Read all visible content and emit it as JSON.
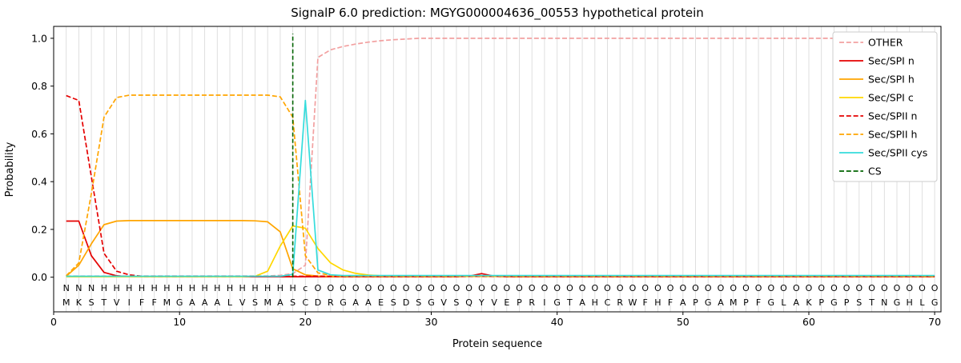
{
  "figure": {
    "title": "SignalP 6.0 prediction: MGYG000004636_00553 hypothetical protein",
    "xlabel": "Protein sequence",
    "ylabel": "Probability"
  },
  "chart_data": {
    "type": "line",
    "title": "SignalP 6.0 prediction: MGYG000004636_00553 hypothetical protein",
    "xlabel": "Protein sequence",
    "ylabel": "Probability",
    "xlim": [
      0,
      70.5
    ],
    "ylim": [
      -0.145,
      1.05
    ],
    "xticks": [
      0,
      10,
      20,
      30,
      40,
      50,
      60,
      70
    ],
    "yticks": [
      "0.0",
      "0.2",
      "0.4",
      "0.6",
      "0.8",
      "1.0"
    ],
    "grid_color": "#dcdcdc",
    "frame_color": "#000000",
    "legend_position": "upper right",
    "x": [
      1,
      2,
      3,
      4,
      5,
      6,
      7,
      8,
      9,
      10,
      11,
      12,
      13,
      14,
      15,
      16,
      17,
      18,
      19,
      20,
      21,
      22,
      23,
      24,
      25,
      26,
      27,
      28,
      29,
      30,
      31,
      32,
      33,
      34,
      35,
      36,
      37,
      38,
      39,
      40,
      41,
      42,
      43,
      44,
      45,
      46,
      47,
      48,
      49,
      50,
      51,
      52,
      53,
      54,
      55,
      56,
      57,
      58,
      59,
      60,
      61,
      62,
      63,
      64,
      65,
      66,
      67,
      68,
      69,
      70
    ],
    "series": [
      {
        "name": "OTHER",
        "color": "#f2a0a0",
        "dash": "dashed",
        "values": [
          0.005,
          0.005,
          0.005,
          0.005,
          0.005,
          0.005,
          0.005,
          0.005,
          0.005,
          0.005,
          0.005,
          0.005,
          0.005,
          0.005,
          0.005,
          0.005,
          0.005,
          0.008,
          0.015,
          0.05,
          0.92,
          0.952,
          0.966,
          0.976,
          0.984,
          0.99,
          0.994,
          0.997,
          1.0,
          1.0,
          1.0,
          1.0,
          1.0,
          1.0,
          1.0,
          1.0,
          1.0,
          1.0,
          1.0,
          1.0,
          1.0,
          1.0,
          1.0,
          1.0,
          1.0,
          1.0,
          1.0,
          1.0,
          1.0,
          1.0,
          1.0,
          1.0,
          1.0,
          1.0,
          1.0,
          1.0,
          1.0,
          1.0,
          1.0,
          1.0,
          1.0,
          1.0,
          1.0,
          1.0,
          1.0,
          1.0,
          1.0,
          1.0,
          1.0,
          1.0
        ]
      },
      {
        "name": "Sec/SPI n",
        "color": "#e50000",
        "dash": "solid",
        "values": [
          0.235,
          0.235,
          0.09,
          0.02,
          0.006,
          0.002,
          0.002,
          0.002,
          0.002,
          0.002,
          0.002,
          0.002,
          0.002,
          0.002,
          0.002,
          0.002,
          0.002,
          0.002,
          0.002,
          0.002,
          0.002,
          0.002,
          0.002,
          0.002,
          0.002,
          0.002,
          0.002,
          0.002,
          0.002,
          0.002,
          0.002,
          0.002,
          0.004,
          0.015,
          0.004,
          0.002,
          0.002,
          0.002,
          0.002,
          0.002,
          0.002,
          0.002,
          0.002,
          0.002,
          0.002,
          0.002,
          0.002,
          0.002,
          0.002,
          0.002,
          0.002,
          0.002,
          0.002,
          0.002,
          0.002,
          0.002,
          0.002,
          0.002,
          0.002,
          0.002,
          0.002,
          0.002,
          0.002,
          0.002,
          0.002,
          0.002,
          0.002,
          0.002,
          0.002,
          0.002
        ]
      },
      {
        "name": "Sec/SPI h",
        "color": "#ffa500",
        "dash": "solid",
        "values": [
          0.004,
          0.05,
          0.14,
          0.22,
          0.235,
          0.237,
          0.237,
          0.237,
          0.237,
          0.237,
          0.237,
          0.237,
          0.237,
          0.237,
          0.237,
          0.236,
          0.232,
          0.19,
          0.035,
          0.01,
          0.005,
          0.003,
          0.003,
          0.003,
          0.003,
          0.003,
          0.003,
          0.003,
          0.003,
          0.003,
          0.003,
          0.003,
          0.003,
          0.003,
          0.003,
          0.003,
          0.003,
          0.003,
          0.003,
          0.003,
          0.003,
          0.003,
          0.003,
          0.003,
          0.003,
          0.003,
          0.003,
          0.003,
          0.003,
          0.003,
          0.003,
          0.003,
          0.003,
          0.003,
          0.003,
          0.003,
          0.003,
          0.003,
          0.003,
          0.003,
          0.003,
          0.003,
          0.003,
          0.003,
          0.003,
          0.003,
          0.003,
          0.003,
          0.003,
          0.003
        ]
      },
      {
        "name": "Sec/SPI c",
        "color": "#ffd700",
        "dash": "solid",
        "values": [
          0.002,
          0.002,
          0.002,
          0.002,
          0.002,
          0.002,
          0.002,
          0.002,
          0.002,
          0.002,
          0.002,
          0.002,
          0.002,
          0.002,
          0.002,
          0.004,
          0.025,
          0.13,
          0.215,
          0.205,
          0.12,
          0.06,
          0.03,
          0.016,
          0.009,
          0.006,
          0.004,
          0.004,
          0.004,
          0.004,
          0.004,
          0.004,
          0.004,
          0.004,
          0.004,
          0.004,
          0.004,
          0.004,
          0.004,
          0.004,
          0.004,
          0.004,
          0.004,
          0.004,
          0.004,
          0.004,
          0.004,
          0.004,
          0.004,
          0.004,
          0.004,
          0.004,
          0.004,
          0.004,
          0.004,
          0.004,
          0.004,
          0.004,
          0.004,
          0.004,
          0.004,
          0.004,
          0.004,
          0.004,
          0.004,
          0.004,
          0.004,
          0.004,
          0.004,
          0.004
        ]
      },
      {
        "name": "Sec/SPII n",
        "color": "#e50000",
        "dash": "dashed",
        "values": [
          0.76,
          0.74,
          0.42,
          0.1,
          0.025,
          0.01,
          0.004,
          0.004,
          0.004,
          0.004,
          0.004,
          0.004,
          0.004,
          0.004,
          0.004,
          0.004,
          0.004,
          0.004,
          0.004,
          0.004,
          0.004,
          0.004,
          0.004,
          0.004,
          0.004,
          0.004,
          0.004,
          0.004,
          0.004,
          0.004,
          0.004,
          0.004,
          0.004,
          0.004,
          0.004,
          0.004,
          0.004,
          0.004,
          0.004,
          0.004,
          0.004,
          0.004,
          0.004,
          0.004,
          0.004,
          0.004,
          0.004,
          0.004,
          0.004,
          0.004,
          0.004,
          0.004,
          0.004,
          0.004,
          0.004,
          0.004,
          0.004,
          0.004,
          0.004,
          0.004,
          0.004,
          0.004,
          0.004,
          0.004,
          0.004,
          0.004,
          0.004,
          0.004,
          0.004,
          0.004
        ]
      },
      {
        "name": "Sec/SPII h",
        "color": "#ffa500",
        "dash": "dashed",
        "values": [
          0.006,
          0.06,
          0.35,
          0.67,
          0.752,
          0.762,
          0.762,
          0.762,
          0.762,
          0.762,
          0.762,
          0.762,
          0.762,
          0.762,
          0.762,
          0.762,
          0.762,
          0.755,
          0.67,
          0.09,
          0.018,
          0.008,
          0.005,
          0.005,
          0.005,
          0.005,
          0.005,
          0.005,
          0.005,
          0.005,
          0.005,
          0.005,
          0.005,
          0.005,
          0.005,
          0.005,
          0.005,
          0.005,
          0.005,
          0.005,
          0.005,
          0.005,
          0.005,
          0.005,
          0.005,
          0.005,
          0.005,
          0.005,
          0.005,
          0.005,
          0.005,
          0.005,
          0.005,
          0.005,
          0.005,
          0.005,
          0.005,
          0.005,
          0.005,
          0.005,
          0.005,
          0.005,
          0.005,
          0.005,
          0.005,
          0.005,
          0.005,
          0.005,
          0.005,
          0.005
        ]
      },
      {
        "name": "Sec/SPII cys",
        "color": "#35dcdc",
        "dash": "solid",
        "values": [
          0.004,
          0.004,
          0.004,
          0.004,
          0.004,
          0.004,
          0.004,
          0.004,
          0.004,
          0.004,
          0.004,
          0.004,
          0.004,
          0.004,
          0.004,
          0.004,
          0.004,
          0.004,
          0.012,
          0.74,
          0.03,
          0.01,
          0.007,
          0.007,
          0.007,
          0.007,
          0.007,
          0.007,
          0.007,
          0.007,
          0.007,
          0.007,
          0.007,
          0.007,
          0.007,
          0.007,
          0.007,
          0.007,
          0.007,
          0.007,
          0.007,
          0.007,
          0.007,
          0.007,
          0.007,
          0.007,
          0.007,
          0.007,
          0.007,
          0.007,
          0.007,
          0.007,
          0.007,
          0.007,
          0.007,
          0.007,
          0.007,
          0.007,
          0.007,
          0.007,
          0.007,
          0.007,
          0.007,
          0.007,
          0.007,
          0.007,
          0.007,
          0.007,
          0.007,
          0.007
        ]
      },
      {
        "name": "CS",
        "color": "#006400",
        "dash": "dashed",
        "type": "vline",
        "x": 19,
        "span": [
          0,
          1.02
        ]
      }
    ],
    "sequence": "MKSTVIFFMGAAALVSMASCDRGAAESDSGVSQYVEPRIGTAHCRWFHFAPGAMPFGLAKPGPSTNGHLG",
    "annotation": "NNNHHHHHHHHHHHHHHHHcOOOOOOOOOOOOOOOOOOOOOOOOOOOOOOOOOOOOOOOOOOOOOOOOOO",
    "annotation_colors": {
      "N": "#e50000",
      "H": "#ffa500",
      "c": "#35dcdc",
      "O": "#8a8a8a"
    }
  }
}
